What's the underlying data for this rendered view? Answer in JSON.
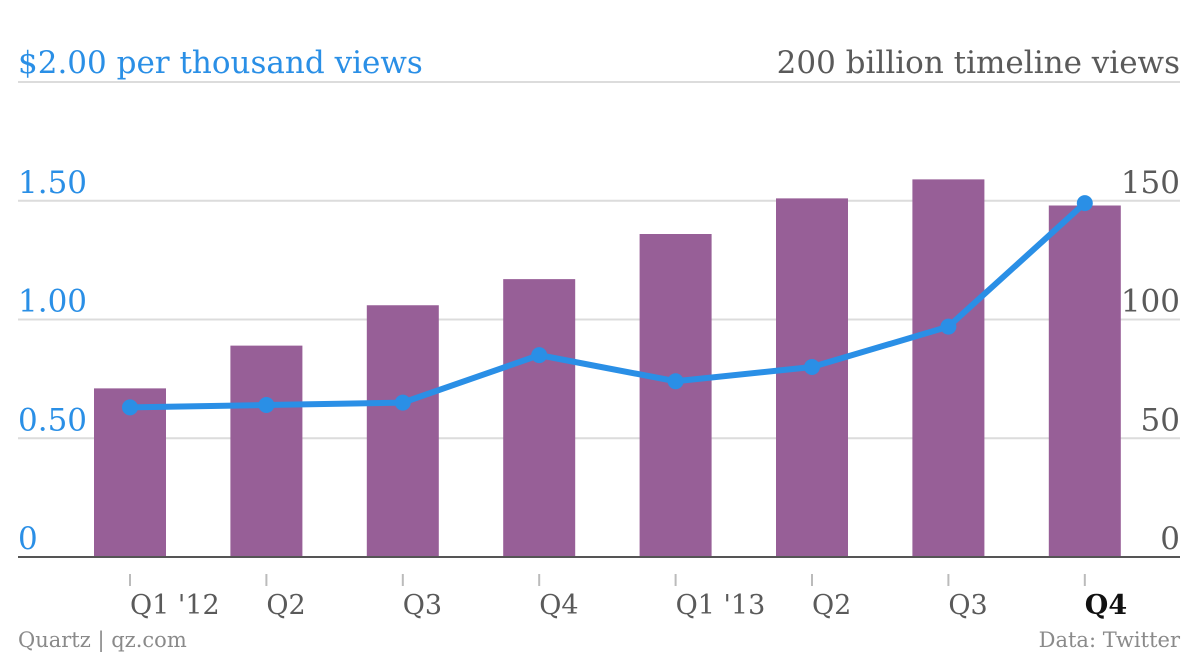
{
  "colors": {
    "line": "#2a8fe6",
    "bar": "#975f97",
    "right_axis_text": "#5a5a5a",
    "footer_text": "#8a8a8a",
    "grid": "#dcdcdc",
    "baseline": "#555555"
  },
  "footer": {
    "source_left": "Quartz | qz.com",
    "source_right": "Data: Twitter"
  },
  "chart_data": {
    "type": "bar+line",
    "title_left": "$2.00 per thousand views",
    "title_right": "200 billion timeline views",
    "categories": [
      "Q1 '12",
      "Q2",
      "Q3",
      "Q4",
      "Q1 '13",
      "Q2",
      "Q3",
      "Q4"
    ],
    "highlight_category_index": 7,
    "left_axis": {
      "ylim": [
        0,
        2.0
      ],
      "ticks": [
        0,
        0.5,
        1.0,
        1.5
      ],
      "tick_labels": [
        "0",
        "0.50",
        "1.00",
        "1.50"
      ],
      "unit": "$ per thousand views",
      "top_label": "$2.00"
    },
    "right_axis": {
      "ylim": [
        0,
        200
      ],
      "ticks": [
        0,
        50,
        100,
        150
      ],
      "tick_labels": [
        "0",
        "50",
        "100",
        "150"
      ],
      "unit": "billion timeline views",
      "top_label": "200"
    },
    "grid": true,
    "series": [
      {
        "type": "bar",
        "axis": "right",
        "values": [
          71,
          89,
          106,
          117,
          136,
          151,
          159,
          148
        ]
      },
      {
        "type": "line",
        "axis": "left",
        "values": [
          0.63,
          0.64,
          0.65,
          0.85,
          0.74,
          0.8,
          0.97,
          1.49
        ]
      }
    ]
  }
}
